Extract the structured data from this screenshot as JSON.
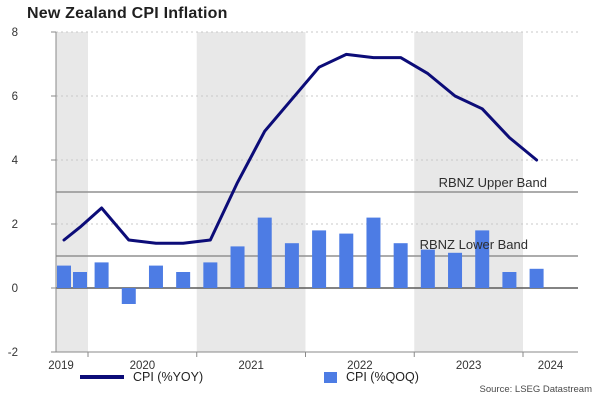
{
  "title": "New Zealand CPI Inflation",
  "source": "Source: LSEG Datastream",
  "colors": {
    "line": "#0c0c78",
    "bar": "#4d7ce4",
    "year_band_fill": "#e8e8e8",
    "reference_line": "#919191",
    "zero_line": "#5a5a5a",
    "grid": "#c9c9c9",
    "axis": "#8a8a8a",
    "tick_text": "#333333"
  },
  "annotations": {
    "upper_band_label": "RBNZ Upper Band",
    "lower_band_label": "RBNZ Lower Band"
  },
  "legend": {
    "yoy_label": "CPI (%YOY)",
    "qoq_label": "CPI (%QOQ)"
  },
  "chart_data": {
    "type": "combo (line + bar)",
    "x_unit": "quarter",
    "quarters": [
      "2019Q3",
      "2019Q4",
      "2020Q1",
      "2020Q2",
      "2020Q3",
      "2020Q4",
      "2021Q1",
      "2021Q2",
      "2021Q3",
      "2021Q4",
      "2022Q1",
      "2022Q2",
      "2022Q3",
      "2022Q4",
      "2023Q1",
      "2023Q2",
      "2023Q3",
      "2023Q4",
      "2024Q1"
    ],
    "series": [
      {
        "name": "CPI (%YOY)",
        "type": "line",
        "values": [
          1.5,
          1.9,
          2.5,
          1.5,
          1.4,
          1.4,
          1.5,
          3.3,
          4.9,
          5.9,
          6.9,
          7.3,
          7.2,
          7.2,
          6.7,
          6.0,
          5.6,
          4.7,
          4.0
        ]
      },
      {
        "name": "CPI (%QOQ)",
        "type": "bar",
        "values": [
          0.7,
          0.5,
          0.8,
          -0.5,
          0.7,
          0.5,
          0.8,
          1.3,
          2.2,
          1.4,
          1.8,
          1.7,
          2.2,
          1.4,
          1.2,
          1.1,
          1.8,
          0.5,
          0.6
        ]
      }
    ],
    "x_tick_labels": [
      "2019",
      "2020",
      "2021",
      "2022",
      "2023",
      "2024"
    ],
    "y_ticks": [
      8,
      6,
      4,
      2,
      0,
      -2
    ],
    "ylim": [
      -2,
      8
    ],
    "grid_values": [
      2,
      4,
      6,
      8
    ],
    "reference_lines": [
      {
        "label": "RBNZ Upper Band",
        "value": 3
      },
      {
        "label": "RBNZ Lower Band",
        "value": 1
      }
    ],
    "shaded_year_labels": [
      "2019",
      "2021",
      "2023"
    ],
    "legend_position": "bottom",
    "title": "New Zealand CPI Inflation"
  }
}
